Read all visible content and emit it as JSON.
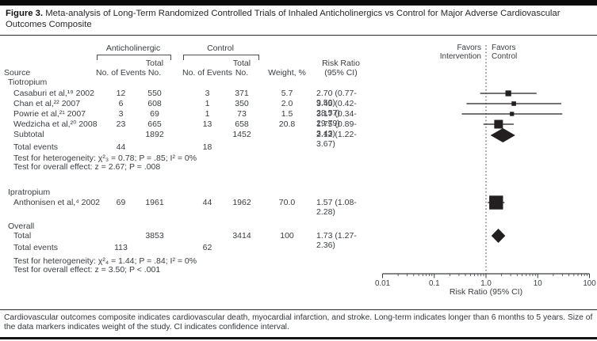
{
  "figure": {
    "label": "Figure 3.",
    "title": "Meta-analysis of Long-Term Randomized Controlled Trials of Inhaled Anticholinergics vs Control for Major Adverse Cardiovascular Outcomes Composite"
  },
  "caption": "Cardiovascular outcomes composite indicates cardiovascular death, myocardial infarction, and stroke. Long-term indicates longer than 6 months to 5 years. Size of the data markers indicates weight of the study. CI indicates confidence interval.",
  "headers": {
    "source": "Source",
    "anticholinergic": "Anticholinergic",
    "control": "Control",
    "events1": "No. of Events",
    "total1a": "Total",
    "total1b": "No.",
    "events2": "No. of Events",
    "total2a": "Total",
    "total2b": "No.",
    "weight": "Weight, %",
    "rr1": "Risk Ratio",
    "rr2": "(95% CI)"
  },
  "sections": {
    "tiotropium": {
      "name": "Tiotropium",
      "rows": [
        {
          "source": "Casaburi et al,¹⁹ 2002",
          "e1": "12",
          "n1": "550",
          "e2": "3",
          "n2": "371",
          "w": "5.7",
          "rr": "2.70 (0.77-9.50)"
        },
        {
          "source": "Chan et al,²² 2007",
          "e1": "6",
          "n1": "608",
          "e2": "1",
          "n2": "350",
          "w": "2.0",
          "rr": "3.45 (0.42-28.57)"
        },
        {
          "source": "Powrie et al,²¹ 2007",
          "e1": "3",
          "n1": "69",
          "e2": "1",
          "n2": "73",
          "w": "1.5",
          "rr": "3.17 (0.34-29.79)"
        },
        {
          "source": "Wedzicha et al,²⁰ 2008",
          "e1": "23",
          "n1": "665",
          "e2": "13",
          "n2": "658",
          "w": "20.8",
          "rr": "1.75 (0.89-3.43)"
        }
      ],
      "subtotal": {
        "source": "Subtotal",
        "n1": "1892",
        "n2": "1452",
        "rr": "2.12 (1.22-3.67)"
      },
      "total_events": {
        "source": "Total events",
        "e1": "44",
        "e2": "18"
      },
      "het": "Test for heterogeneity: χ²₃ = 0.78; P = .85; I² = 0%",
      "overall_effect": "Test for overall effect: z = 2.67; P = .008"
    },
    "ipratropium": {
      "name": "Ipratropium",
      "rows": [
        {
          "source": "Anthonisen et al,⁴ 2002",
          "e1": "69",
          "n1": "1961",
          "e2": "44",
          "n2": "1962",
          "w": "70.0",
          "rr": "1.57 (1.08-2.28)"
        }
      ]
    },
    "overall": {
      "name": "Overall",
      "total": {
        "source": "Total",
        "n1": "3853",
        "n2": "3414",
        "w": "100",
        "rr": "1.73 (1.27-2.36)"
      },
      "total_events": {
        "source": "Total events",
        "e1": "113",
        "e2": "62"
      },
      "het": "Test for heterogeneity: χ²₄ = 1.44; P = .84; I² = 0%",
      "overall_effect": "Test for overall effect: z = 3.50; P < .001"
    }
  },
  "chart_data": {
    "type": "forest",
    "xlabel": "Risk Ratio (95% CI)",
    "xscale": "log",
    "xlim": [
      0.01,
      100
    ],
    "null_line": 1.0,
    "favors_left": "Favors\nIntervention",
    "favors_right": "Favors\nControl",
    "x_ticks": [
      {
        "v": 0.01,
        "label": "0.01"
      },
      {
        "v": 0.1,
        "label": "0.1"
      },
      {
        "v": 1.0,
        "label": "1.0"
      },
      {
        "v": 10,
        "label": "10"
      },
      {
        "v": 100,
        "label": "100"
      }
    ],
    "rows": [
      {
        "label": "Casaburi et al, 2002",
        "type": "study",
        "rr": 2.7,
        "lo": 0.77,
        "hi": 9.5,
        "weight": 5.7,
        "y": 118
      },
      {
        "label": "Chan et al, 2007",
        "type": "study",
        "rr": 3.45,
        "lo": 0.42,
        "hi": 28.57,
        "weight": 2.0,
        "y": 131
      },
      {
        "label": "Powrie et al, 2007",
        "type": "study",
        "rr": 3.17,
        "lo": 0.34,
        "hi": 29.79,
        "weight": 1.5,
        "y": 144
      },
      {
        "label": "Wedzicha et al, 2008",
        "type": "study",
        "rr": 1.75,
        "lo": 0.89,
        "hi": 3.43,
        "weight": 20.8,
        "y": 157
      },
      {
        "label": "Subtotal",
        "type": "diamond",
        "rr": 2.12,
        "lo": 1.22,
        "hi": 3.67,
        "y": 171
      },
      {
        "label": "Anthonisen et al, 2002",
        "type": "study",
        "rr": 1.57,
        "lo": 1.08,
        "hi": 2.28,
        "weight": 70.0,
        "y": 256
      },
      {
        "label": "Overall",
        "type": "diamond",
        "rr": 1.73,
        "lo": 1.27,
        "hi": 2.36,
        "y": 298
      }
    ]
  }
}
